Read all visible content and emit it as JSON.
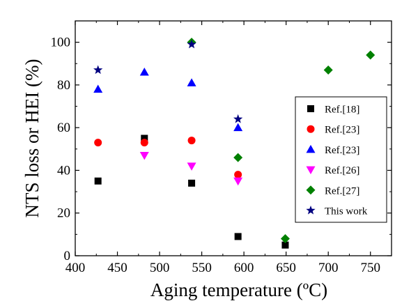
{
  "chart_data": {
    "type": "scatter",
    "xlabel": "Aging temperature (ºC)",
    "ylabel": "NTS loss or HEI (%)",
    "xlim": [
      400,
      775
    ],
    "ylim": [
      0,
      110
    ],
    "xticks": [
      400,
      450,
      500,
      550,
      600,
      650,
      700,
      750
    ],
    "yticks": [
      0,
      20,
      40,
      60,
      80,
      100
    ],
    "grid": false,
    "legend_position": "right",
    "series": [
      {
        "name": "Ref.[18]",
        "marker": "square",
        "color": "#000000",
        "points": [
          [
            427,
            35
          ],
          [
            482,
            55
          ],
          [
            538,
            34
          ],
          [
            593,
            9
          ],
          [
            649,
            5
          ]
        ]
      },
      {
        "name": "Ref.[23]",
        "marker": "circle",
        "color": "#ff0000",
        "points": [
          [
            427,
            53
          ],
          [
            482,
            53
          ],
          [
            538,
            54
          ],
          [
            593,
            38
          ]
        ]
      },
      {
        "name": "Ref.[23]",
        "marker": "triangle-up",
        "color": "#0000ff",
        "points": [
          [
            427,
            78
          ],
          [
            482,
            86
          ],
          [
            538,
            81
          ],
          [
            593,
            60
          ]
        ]
      },
      {
        "name": "Ref.[26]",
        "marker": "triangle-down",
        "color": "#ff00ff",
        "points": [
          [
            482,
            47
          ],
          [
            538,
            42
          ],
          [
            593,
            35
          ]
        ]
      },
      {
        "name": "Ref.[27]",
        "marker": "diamond",
        "color": "#008000",
        "points": [
          [
            538,
            100
          ],
          [
            593,
            46
          ],
          [
            649,
            8
          ],
          [
            700,
            87
          ],
          [
            750,
            94
          ]
        ]
      },
      {
        "name": "This work",
        "marker": "star",
        "color": "#000080",
        "points": [
          [
            427,
            87
          ],
          [
            538,
            99
          ],
          [
            593,
            64
          ]
        ]
      }
    ]
  }
}
